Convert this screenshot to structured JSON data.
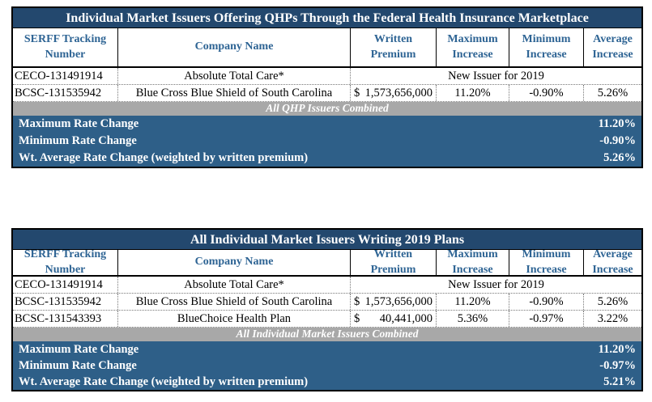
{
  "colors": {
    "title_bar": "#23486E",
    "header_text": "#2E6494",
    "summary_bar": "#2E5F88",
    "gray_band": "#A8A8A8"
  },
  "tables": [
    {
      "title": "Individual Market Issuers Offering QHPs Through the Federal Health Insurance Marketplace",
      "headers": [
        {
          "l1": "SERFF Tracking",
          "l2": "Number"
        },
        {
          "l1": "Company Name",
          "l2": ""
        },
        {
          "l1": "Written",
          "l2": "Premium"
        },
        {
          "l1": "Maximum",
          "l2": "Increase"
        },
        {
          "l1": "Minimum",
          "l2": "Increase"
        },
        {
          "l1": "Average",
          "l2": "Increase"
        }
      ],
      "rows": [
        {
          "serff": "CECO-131491914",
          "company": "Absolute Total Care*",
          "span_note": "New Issuer for 2019"
        },
        {
          "serff": "BCSC-131535942",
          "company": "Blue Cross Blue Shield of South Carolina",
          "currency": "$",
          "premium": "1,573,656,000",
          "max_increase": "11.20%",
          "min_increase": "-0.90%",
          "avg_increase": "5.26%"
        }
      ],
      "combined_band": "All QHP Issuers Combined",
      "summary": [
        {
          "label": "Maximum Rate Change",
          "value": "11.20%"
        },
        {
          "label": "Minimum Rate Change",
          "value": "-0.90%"
        },
        {
          "label": "Wt. Average Rate Change (weighted by written premium)",
          "value": "5.26%"
        }
      ]
    },
    {
      "title": "All Individual Market Issuers Writing 2019 Plans",
      "headers": [
        {
          "l1": "SERFF Tracking",
          "l2": "Number"
        },
        {
          "l1": "Company Name",
          "l2": ""
        },
        {
          "l1": "Written",
          "l2": "Premium"
        },
        {
          "l1": "Maximum",
          "l2": "Increase"
        },
        {
          "l1": "Minimum",
          "l2": "Increase"
        },
        {
          "l1": "Average",
          "l2": "Increase"
        }
      ],
      "rows": [
        {
          "serff": "CECO-131491914",
          "company": "Absolute Total Care*",
          "span_note": "New Issuer for 2019"
        },
        {
          "serff": "BCSC-131535942",
          "company": "Blue Cross Blue Shield of South Carolina",
          "currency": "$",
          "premium": "1,573,656,000",
          "max_increase": "11.20%",
          "min_increase": "-0.90%",
          "avg_increase": "5.26%"
        },
        {
          "serff": "BCSC-131543393",
          "company": "BlueChoice Health Plan",
          "currency": "$",
          "premium": "40,441,000",
          "max_increase": "5.36%",
          "min_increase": "-0.97%",
          "avg_increase": "3.22%"
        }
      ],
      "combined_band": "All Individual Market Issuers Combined",
      "summary": [
        {
          "label": "Maximum Rate Change",
          "value": "11.20%"
        },
        {
          "label": "Minimum Rate Change",
          "value": "-0.97%"
        },
        {
          "label": "Wt. Average Rate Change (weighted by written premium)",
          "value": "5.21%"
        }
      ]
    }
  ]
}
